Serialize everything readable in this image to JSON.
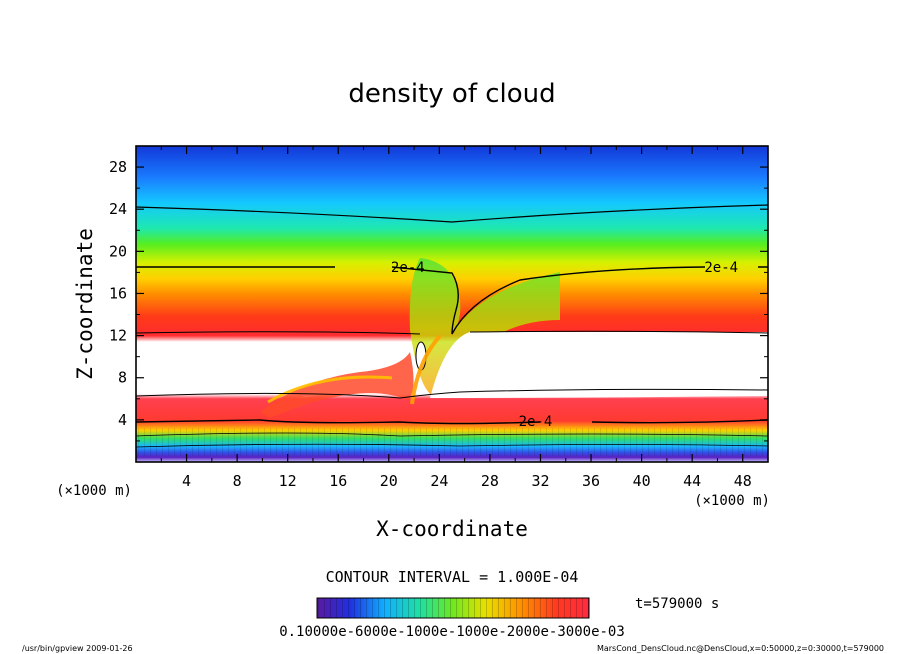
{
  "chart_data": {
    "type": "heatmap",
    "title": "density of cloud",
    "xlabel": "X-coordinate",
    "ylabel": "Z-coordinate",
    "x_unit": "(×1000 m)",
    "z_unit": "(×1000 m)",
    "xlim": [
      0,
      50
    ],
    "ylim": [
      0,
      30
    ],
    "x_ticks": [
      "4",
      "8",
      "12",
      "16",
      "20",
      "24",
      "28",
      "32",
      "36",
      "40",
      "44",
      "48"
    ],
    "y_ticks": [
      "4",
      "8",
      "12",
      "16",
      "20",
      "24",
      "28"
    ],
    "contour_interval": "CONTOUR INTERVAL = 1.000E-04",
    "contour_labels": [
      "2e-4",
      "2e-4",
      "2e-4"
    ],
    "time_label": "t=579000 s",
    "colorbar_labels": "0.10000e-6000e-1000e-1000e-2000e-3000e-03",
    "colors": {
      "top": "#0a4ad8",
      "gradient": [
        "#1a3fe0",
        "#1f8fff",
        "#18d8ff",
        "#22ee88",
        "#7fee00",
        "#ffe800",
        "#ff9c00",
        "#ff3a10",
        "#ff2a2a"
      ],
      "saturated": "#ffffff",
      "contour": "#000000"
    }
  },
  "footer": {
    "left": "/usr/bin/gpview  2009-01-26",
    "right": "MarsCond_DensCloud.nc@DensCloud,x=0:50000,z=0:30000,t=579000"
  }
}
